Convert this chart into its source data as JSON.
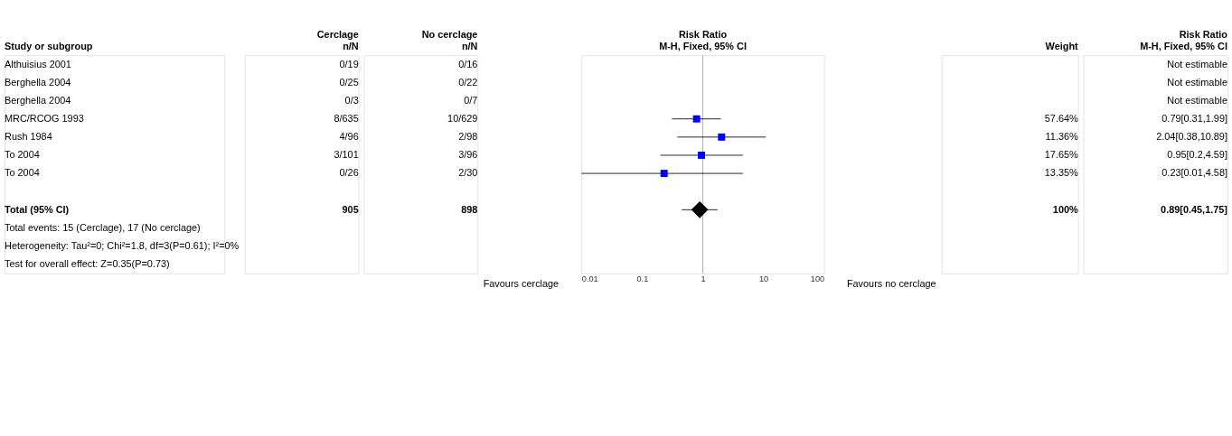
{
  "chart_data": [
    {
      "type": "other",
      "title": "Study or subgroup",
      "annotations": [
        "Althuisius 2001",
        "Berghella 2004",
        "Berghella 2004",
        "MRC/RCOG 1993",
        "Rush 1984",
        "To 2004",
        "To 2004",
        "Total (95% CI)",
        "Total events: 15 (Cerclage), 17 (No cerclage)",
        "Heterogeneity: Tau²=0; Chi²=1.8, df=3(P=0.61); I²=0%",
        "Test for overall effect: Z=0.35(P=0.73)"
      ]
    },
    {
      "type": "other",
      "title": "Cerclage",
      "subtitle": "n/N",
      "annotations": [
        "0/19",
        "0/25",
        "0/3",
        "8/635",
        "4/96",
        "3/101",
        "0/26",
        "905"
      ]
    },
    {
      "type": "other",
      "title": "No cerclage",
      "subtitle": "n/N",
      "annotations": [
        "0/16",
        "0/22",
        "0/7",
        "10/629",
        "2/98",
        "3/96",
        "2/30",
        "898"
      ]
    },
    {
      "type": "scatter",
      "orientation": "horizontal",
      "title": "Risk Ratio",
      "subtitle": "M-H, Fixed, 95% CI",
      "categories": [
        null,
        null,
        null,
        null,
        null,
        null,
        null,
        null,
        null,
        null,
        null,
        null
      ],
      "series": [
        {
          "color": "#0000ff",
          "marker": "square",
          "values": [
            null,
            null,
            null,
            0.79,
            2.04,
            0.95,
            0.23,
            null,
            null,
            null,
            null,
            null
          ],
          "errors": [
            null,
            null,
            null,
            [
              0.31,
              1.99
            ],
            [
              0.38,
              10.89
            ],
            [
              0.2,
              4.59
            ],
            [
              0.01,
              4.58
            ],
            null,
            null,
            null,
            null,
            null
          ]
        },
        {
          "color": "#000000",
          "marker": "diamond",
          "values": [
            null,
            null,
            null,
            null,
            null,
            null,
            null,
            null,
            0.89,
            null,
            null,
            null
          ],
          "errors": [
            null,
            null,
            null,
            null,
            null,
            null,
            null,
            null,
            [
              0.45,
              1.75
            ],
            null,
            null,
            null
          ]
        }
      ],
      "xlim": [
        0.01,
        100
      ],
      "xticks": [
        0.01,
        0.1,
        1,
        10,
        100
      ],
      "log": "x",
      "grid": false,
      "tick_labels": "x",
      "ref_lines": [
        {
          "axis": "x",
          "value": 1,
          "color": "#a0a0a0"
        }
      ],
      "annotations": [
        "Favours cerclage",
        "Favours no cerclage"
      ]
    },
    {
      "type": "other",
      "title": "Weight",
      "annotations": [
        null,
        null,
        null,
        "57.64%",
        "11.36%",
        "17.65%",
        "13.35%",
        "100%"
      ]
    },
    {
      "type": "other",
      "title": "Risk Ratio",
      "subtitle": "M-H, Fixed, 95% CI",
      "annotations": [
        "Not estimable",
        "Not estimable",
        "Not estimable",
        "0.79[0.31,1.99]",
        "2.04[0.38,10.89]",
        "0.95[0.2,4.59]",
        "0.23[0.01,4.58]",
        "0.89[0.45,1.75]"
      ]
    }
  ]
}
